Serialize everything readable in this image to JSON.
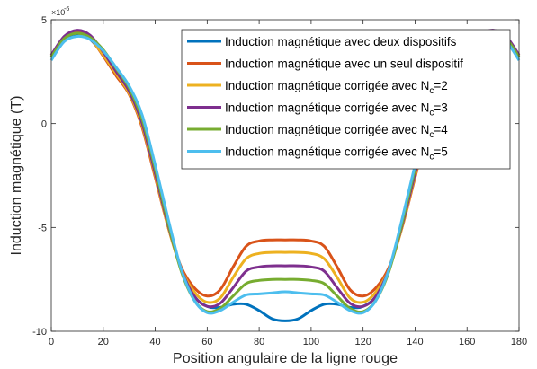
{
  "chart_data": {
    "type": "line",
    "xlabel": "Position angulaire de la ligne rouge",
    "ylabel": "Induction magnétique (T)",
    "y_multiplier": "×10",
    "y_multiplier_exp": "-6",
    "xlim": [
      0,
      180
    ],
    "ylim": [
      -10,
      5
    ],
    "xticks": [
      0,
      20,
      40,
      60,
      80,
      100,
      120,
      140,
      160,
      180
    ],
    "yticks": [
      -10,
      -5,
      0,
      5
    ],
    "ytick_labels": [
      "-10",
      "-5",
      "0",
      "5"
    ],
    "grid": false,
    "legend_position": "top-right",
    "legend": [
      {
        "text": "Induction magnétique avec deux dispositifs",
        "sub": "",
        "after": ""
      },
      {
        "text": "Induction magnétique avec un seul dispositif",
        "sub": "",
        "after": ""
      },
      {
        "text": "Induction magnétique corrigée avec N",
        "sub": "c",
        "after": "=2"
      },
      {
        "text": "Induction magnétique corrigée avec N",
        "sub": "c",
        "after": "=3"
      },
      {
        "text": "Induction magnétique corrigée avec N",
        "sub": "c",
        "after": "=4"
      },
      {
        "text": "Induction magnétique corrigée avec N",
        "sub": "c",
        "after": "=5"
      }
    ],
    "series": [
      {
        "color": "#0072BD",
        "x": [
          0,
          5,
          10,
          15,
          20,
          25,
          30,
          35,
          40,
          45,
          50,
          55,
          60,
          65,
          70,
          75,
          80,
          85,
          90,
          95,
          100,
          105,
          110,
          115,
          120,
          125,
          130,
          135,
          140,
          145,
          150,
          155,
          160,
          165,
          170,
          175,
          180
        ],
        "y": [
          3.2,
          4.05,
          4.3,
          4.05,
          3.3,
          2.4,
          1.5,
          0.0,
          -2.4,
          -4.9,
          -7.0,
          -8.3,
          -8.8,
          -8.85,
          -8.7,
          -8.7,
          -9.0,
          -9.4,
          -9.5,
          -9.4,
          -9.0,
          -8.7,
          -8.7,
          -8.85,
          -8.8,
          -8.3,
          -7.0,
          -4.9,
          -2.4,
          0.0,
          1.5,
          2.4,
          3.3,
          4.05,
          4.3,
          4.05,
          3.2
        ]
      },
      {
        "color": "#D95319",
        "x": [
          0,
          5,
          10,
          15,
          20,
          25,
          30,
          35,
          40,
          45,
          50,
          55,
          60,
          65,
          70,
          75,
          80,
          85,
          90,
          95,
          100,
          105,
          110,
          115,
          120,
          125,
          130,
          135,
          140,
          145,
          150,
          155,
          160,
          165,
          170,
          175,
          180
        ],
        "y": [
          3.3,
          4.15,
          4.4,
          4.1,
          3.25,
          2.3,
          1.4,
          -0.2,
          -2.6,
          -5.0,
          -6.9,
          -7.9,
          -8.3,
          -8.0,
          -6.9,
          -5.9,
          -5.65,
          -5.6,
          -5.6,
          -5.6,
          -5.65,
          -5.9,
          -6.9,
          -8.0,
          -8.3,
          -7.9,
          -6.9,
          -5.0,
          -2.6,
          -0.2,
          1.4,
          2.3,
          3.25,
          4.1,
          4.4,
          4.15,
          3.3
        ]
      },
      {
        "color": "#EDB120",
        "x": [
          0,
          5,
          10,
          15,
          20,
          25,
          30,
          35,
          40,
          45,
          50,
          55,
          60,
          65,
          70,
          75,
          80,
          85,
          90,
          95,
          100,
          105,
          110,
          115,
          120,
          125,
          130,
          135,
          140,
          145,
          150,
          155,
          160,
          165,
          170,
          175,
          180
        ],
        "y": [
          3.25,
          4.1,
          4.35,
          4.1,
          3.3,
          2.4,
          1.45,
          -0.1,
          -2.5,
          -5.0,
          -7.0,
          -8.1,
          -8.6,
          -8.4,
          -7.4,
          -6.5,
          -6.25,
          -6.2,
          -6.2,
          -6.2,
          -6.25,
          -6.5,
          -7.4,
          -8.4,
          -8.6,
          -8.1,
          -7.0,
          -5.0,
          -2.5,
          -0.1,
          1.45,
          2.4,
          3.3,
          4.1,
          4.35,
          4.1,
          3.25
        ]
      },
      {
        "color": "#7E2F8E",
        "x": [
          0,
          5,
          10,
          15,
          20,
          25,
          30,
          35,
          40,
          45,
          50,
          55,
          60,
          65,
          70,
          75,
          80,
          85,
          90,
          95,
          100,
          105,
          110,
          115,
          120,
          125,
          130,
          135,
          140,
          145,
          150,
          155,
          160,
          165,
          170,
          175,
          180
        ],
        "y": [
          3.3,
          4.2,
          4.5,
          4.25,
          3.45,
          2.5,
          1.55,
          0.0,
          -2.4,
          -4.9,
          -7.0,
          -8.3,
          -8.8,
          -8.65,
          -7.9,
          -7.1,
          -6.9,
          -6.85,
          -6.85,
          -6.85,
          -6.9,
          -7.1,
          -7.9,
          -8.65,
          -8.8,
          -8.3,
          -7.0,
          -4.9,
          -2.4,
          0.0,
          1.55,
          2.5,
          3.45,
          4.25,
          4.5,
          4.2,
          3.3
        ]
      },
      {
        "color": "#77AC30",
        "x": [
          0,
          5,
          10,
          15,
          20,
          25,
          30,
          35,
          40,
          45,
          50,
          55,
          60,
          65,
          70,
          75,
          80,
          85,
          90,
          95,
          100,
          105,
          110,
          115,
          120,
          125,
          130,
          135,
          140,
          145,
          150,
          155,
          160,
          165,
          170,
          175,
          180
        ],
        "y": [
          3.2,
          4.1,
          4.35,
          4.15,
          3.55,
          2.65,
          1.7,
          0.2,
          -2.2,
          -4.8,
          -7.1,
          -8.5,
          -9.05,
          -8.9,
          -8.3,
          -7.7,
          -7.55,
          -7.5,
          -7.5,
          -7.5,
          -7.55,
          -7.7,
          -8.3,
          -8.9,
          -9.05,
          -8.5,
          -7.1,
          -4.8,
          -2.2,
          0.2,
          1.7,
          2.65,
          3.55,
          4.15,
          4.35,
          4.1,
          3.2
        ]
      },
      {
        "color": "#4DBEEE",
        "x": [
          0,
          5,
          10,
          15,
          20,
          25,
          30,
          35,
          40,
          45,
          50,
          55,
          60,
          65,
          70,
          75,
          80,
          85,
          90,
          95,
          100,
          105,
          110,
          115,
          120,
          125,
          130,
          135,
          140,
          145,
          150,
          155,
          160,
          165,
          170,
          175,
          180
        ],
        "y": [
          3.05,
          3.95,
          4.2,
          4.05,
          3.5,
          2.7,
          1.8,
          0.4,
          -2.0,
          -4.6,
          -7.0,
          -8.5,
          -9.1,
          -9.0,
          -8.6,
          -8.25,
          -8.2,
          -8.15,
          -8.1,
          -8.15,
          -8.2,
          -8.25,
          -8.6,
          -9.0,
          -9.1,
          -8.5,
          -7.0,
          -4.6,
          -2.0,
          0.4,
          1.8,
          2.7,
          3.5,
          4.05,
          4.2,
          3.95,
          3.05
        ]
      }
    ]
  }
}
